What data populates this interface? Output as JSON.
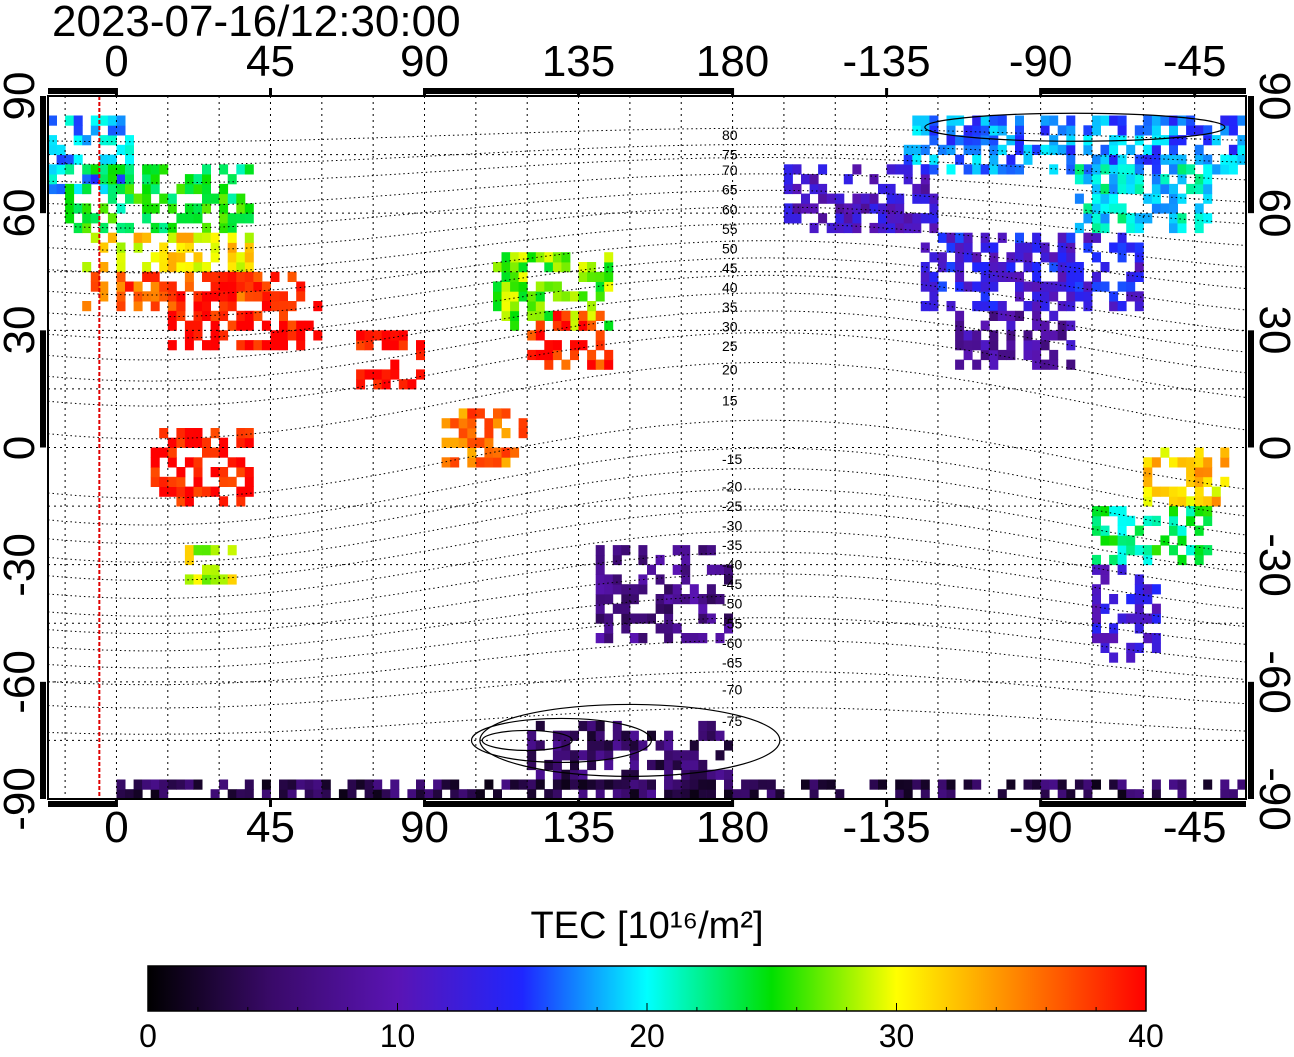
{
  "timestamp": "2023-07-16/12:30:00",
  "top_lon_ticks": [
    {
      "text": "0",
      "lon": 0
    },
    {
      "text": "45",
      "lon": 45
    },
    {
      "text": "90",
      "lon": 90
    },
    {
      "text": "135",
      "lon": 135
    },
    {
      "text": "180",
      "lon": 180
    },
    {
      "text": "-135",
      "lon": 225
    },
    {
      "text": "-90",
      "lon": 270
    },
    {
      "text": "-45",
      "lon": 315
    }
  ],
  "bottom_lon_ticks": [
    {
      "text": "0",
      "lon": 0
    },
    {
      "text": "45",
      "lon": 45
    },
    {
      "text": "90",
      "lon": 90
    },
    {
      "text": "135",
      "lon": 135
    },
    {
      "text": "180",
      "lon": 180
    },
    {
      "text": "-135",
      "lon": 225
    },
    {
      "text": "-90",
      "lon": 270
    },
    {
      "text": "-45",
      "lon": 315
    }
  ],
  "lat_ticks": [
    {
      "text": "90",
      "lat": 90
    },
    {
      "text": "60",
      "lat": 60
    },
    {
      "text": "30",
      "lat": 30
    },
    {
      "text": "0",
      "lat": 0
    },
    {
      "text": "-30",
      "lat": -30
    },
    {
      "text": "-60",
      "lat": -60
    },
    {
      "text": "-90",
      "lat": -90
    }
  ],
  "contour_labels": [
    {
      "text": "80",
      "lat": 80
    },
    {
      "text": "75",
      "lat": 75
    },
    {
      "text": "70",
      "lat": 71
    },
    {
      "text": "65",
      "lat": 66
    },
    {
      "text": "60",
      "lat": 61
    },
    {
      "text": "55",
      "lat": 56
    },
    {
      "text": "50",
      "lat": 51
    },
    {
      "text": "45",
      "lat": 46
    },
    {
      "text": "40",
      "lat": 41
    },
    {
      "text": "35",
      "lat": 36
    },
    {
      "text": "30",
      "lat": 31
    },
    {
      "text": "25",
      "lat": 26
    },
    {
      "text": "20",
      "lat": 20
    },
    {
      "text": "15",
      "lat": 12
    },
    {
      "text": "-15",
      "lat": -3
    },
    {
      "text": "-20",
      "lat": -10
    },
    {
      "text": "-25",
      "lat": -15
    },
    {
      "text": "-30",
      "lat": -20
    },
    {
      "text": "-35",
      "lat": -25
    },
    {
      "text": "-40",
      "lat": -30
    },
    {
      "text": "-45",
      "lat": -35
    },
    {
      "text": "-50",
      "lat": -40
    },
    {
      "text": "-55",
      "lat": -45
    },
    {
      "text": "-60",
      "lat": -50
    },
    {
      "text": "-65",
      "lat": -55
    },
    {
      "text": "-70",
      "lat": -62
    },
    {
      "text": "-75",
      "lat": -70
    }
  ],
  "colorbar": {
    "title": "TEC  [10¹⁶/m²]",
    "min": 0,
    "max": 40,
    "ticks": [
      {
        "text": "0",
        "value": 0
      },
      {
        "text": "10",
        "value": 10
      },
      {
        "text": "20",
        "value": 20
      },
      {
        "text": "30",
        "value": 30
      },
      {
        "text": "40",
        "value": 40
      }
    ],
    "stops": [
      "#000000",
      "#3a0a6a",
      "#5a14b4",
      "#1f26ff",
      "#00ffff",
      "#00e000",
      "#ffff00",
      "#ff8000",
      "#ff0000"
    ]
  },
  "midnight_meridian_lon": -5,
  "tec_regions": [
    {
      "lon1": -20,
      "lon2": 5,
      "lat1": 65,
      "lat2": 85,
      "tec": 18
    },
    {
      "lon1": -15,
      "lon2": 40,
      "lat1": 55,
      "lat2": 72,
      "tec": 24
    },
    {
      "lon1": -10,
      "lon2": 40,
      "lat1": 45,
      "lat2": 55,
      "tec": 31
    },
    {
      "lon1": -10,
      "lon2": 55,
      "lat1": 35,
      "lat2": 45,
      "tec": 37
    },
    {
      "lon1": 15,
      "lon2": 60,
      "lat1": 25,
      "lat2": 38,
      "tec": 40
    },
    {
      "lon1": 70,
      "lon2": 90,
      "lat1": 15,
      "lat2": 30,
      "tec": 40
    },
    {
      "lon1": 110,
      "lon2": 145,
      "lat1": 30,
      "lat2": 48,
      "tec": 27
    },
    {
      "lon1": 120,
      "lon2": 145,
      "lat1": 20,
      "lat2": 33,
      "tec": 38
    },
    {
      "lon1": 10,
      "lon2": 40,
      "lat1": -15,
      "lat2": 3,
      "tec": 40
    },
    {
      "lon1": 20,
      "lon2": 35,
      "lat1": -35,
      "lat2": -25,
      "tec": 29
    },
    {
      "lon1": 95,
      "lon2": 120,
      "lat1": -5,
      "lat2": 10,
      "tec": 36
    },
    {
      "lon1": 140,
      "lon2": 180,
      "lat1": -50,
      "lat2": -25,
      "tec": 7
    },
    {
      "lon1": 195,
      "lon2": 240,
      "lat1": 55,
      "lat2": 72,
      "tec": 11
    },
    {
      "lon1": 235,
      "lon2": 300,
      "lat1": 35,
      "lat2": 55,
      "tec": 13
    },
    {
      "lon1": 245,
      "lon2": 280,
      "lat1": 20,
      "lat2": 35,
      "tec": 9
    },
    {
      "lon1": 230,
      "lon2": 330,
      "lat1": 70,
      "lat2": 85,
      "tec": 17
    },
    {
      "lon1": 280,
      "lon2": 320,
      "lat1": 55,
      "lat2": 72,
      "tec": 20
    },
    {
      "lon1": 300,
      "lon2": 325,
      "lat1": -15,
      "lat2": 0,
      "tec": 32
    },
    {
      "lon1": 285,
      "lon2": 320,
      "lat1": -30,
      "lat2": -15,
      "tec": 23
    },
    {
      "lon1": 285,
      "lon2": 305,
      "lat1": -55,
      "lat2": -30,
      "tec": 12
    },
    {
      "lon1": 120,
      "lon2": 180,
      "lat1": -90,
      "lat2": -70,
      "tec": 5
    },
    {
      "lon1": 0,
      "lon2": 330,
      "lat1": -90,
      "lat2": -85,
      "tec": 4
    }
  ]
}
